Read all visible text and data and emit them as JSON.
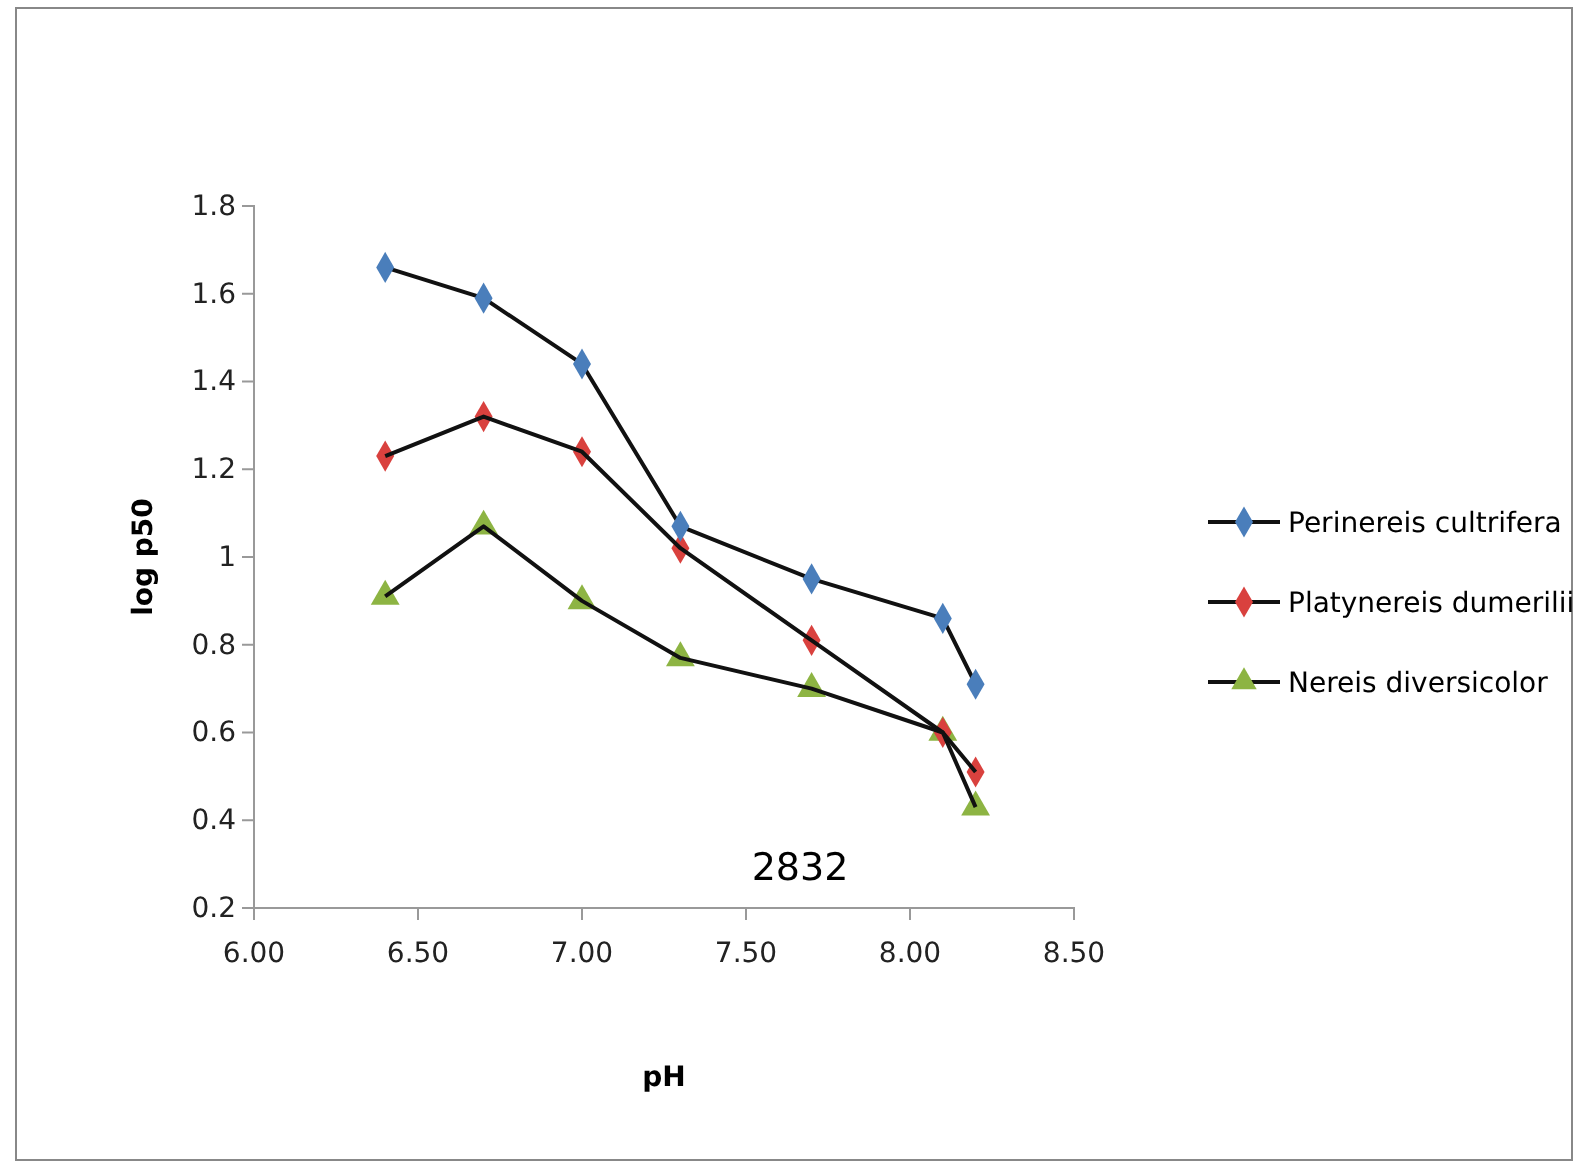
{
  "chart_data": {
    "type": "line",
    "xlabel": "pH",
    "ylabel": "log p50",
    "x": [
      6.4,
      6.7,
      7.0,
      7.3,
      7.7,
      8.1,
      8.2
    ],
    "series": [
      {
        "name": "Perinereis cultrifera",
        "color": "#4a7ebb",
        "marker": "diamond",
        "values": [
          1.66,
          1.59,
          1.44,
          1.07,
          0.95,
          0.86,
          0.71
        ]
      },
      {
        "name": "Platynereis dumerilii",
        "color": "#d9413e",
        "marker": "diamond",
        "values": [
          1.23,
          1.32,
          1.24,
          1.02,
          0.81,
          0.6,
          0.51
        ]
      },
      {
        "name": "Nereis diversicolor",
        "color": "#8db443",
        "marker": "triangle",
        "values": [
          0.91,
          1.07,
          0.9,
          0.77,
          0.7,
          0.6,
          0.43
        ]
      }
    ],
    "xlim": [
      6.0,
      8.5
    ],
    "xticks": [
      {
        "value": 6,
        "label": "6.00"
      },
      {
        "value": 6.5,
        "label": "6.50"
      },
      {
        "value": 7,
        "label": "7.00"
      },
      {
        "value": 7.5,
        "label": "7.50"
      },
      {
        "value": 8,
        "label": "8.00"
      },
      {
        "value": 8.5,
        "label": "8.50"
      }
    ],
    "ylim": [
      0.2,
      1.8
    ],
    "yticks": [
      0.2,
      0.4,
      0.6,
      0.8,
      1,
      1.2,
      1.4,
      1.6,
      1.8
    ],
    "grid": false,
    "legend": "right",
    "line_style": "solid",
    "annotations": [
      "2832"
    ]
  }
}
